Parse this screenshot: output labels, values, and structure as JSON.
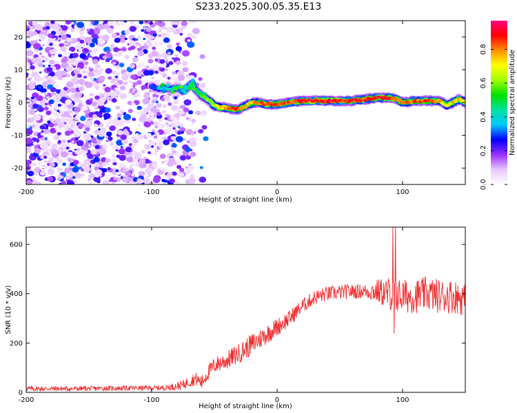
{
  "title": "S233.2025.300.05.35.E13",
  "chart_data": [
    {
      "type": "heatmap",
      "name": "spectrogram",
      "xlabel": "Height of straight line (km)",
      "ylabel": "Frequency (Hz)",
      "xlim": [
        -200,
        150
      ],
      "ylim": [
        -25,
        25
      ],
      "xticks": [
        -200,
        -100,
        0,
        100
      ],
      "xtick_labels": [
        "-200",
        "-100",
        "0",
        "100"
      ],
      "yticks": [
        -20,
        -10,
        0,
        10,
        20
      ],
      "ytick_labels": [
        "-20",
        "-10",
        "0",
        "10",
        "20"
      ],
      "colorbar": {
        "label": "Normalized spectral amplitude",
        "range": [
          0,
          0.97
        ],
        "ticks": [
          0.0,
          0.2,
          0.4,
          0.6,
          0.8
        ],
        "tick_labels": [
          "0.0",
          "0.2",
          "0.4",
          "0.6",
          "0.8"
        ],
        "colors": [
          "#ffffff",
          "#e8c8ff",
          "#9b30ff",
          "#0000ff",
          "#00c8ff",
          "#00e0a0",
          "#00e000",
          "#a0ff00",
          "#ffff00",
          "#ff9000",
          "#ff0000",
          "#ff0080"
        ]
      },
      "noise_region": {
        "x": [
          -200,
          -60
        ],
        "y": [
          -25,
          25
        ],
        "typical_amplitude": 0.15
      },
      "signal_track": {
        "x": [
          -100,
          -95,
          -90,
          -85,
          -80,
          -75,
          -70,
          -68,
          -65,
          -60,
          -55,
          -50,
          -45,
          -40,
          -35,
          -30,
          -25,
          -20,
          -15,
          -10,
          -5,
          0,
          10,
          20,
          30,
          40,
          50,
          60,
          70,
          80,
          90,
          95,
          100,
          110,
          120,
          130,
          135,
          140,
          145,
          150
        ],
        "freq": [
          5,
          4,
          4.5,
          4,
          4.5,
          3.5,
          5,
          6,
          4,
          2,
          1,
          -1,
          -1.5,
          -1.5,
          -2,
          -2,
          -1,
          0,
          0,
          -0.5,
          -0.5,
          -0.5,
          0,
          0.5,
          0.5,
          0.5,
          0.5,
          0.5,
          1,
          1.5,
          1.5,
          1,
          0,
          0.5,
          0.5,
          0.5,
          -1,
          0,
          1,
          0
        ],
        "amplitude": [
          0.3,
          0.35,
          0.4,
          0.45,
          0.5,
          0.45,
          0.5,
          0.5,
          0.5,
          0.6,
          0.65,
          0.7,
          0.8,
          0.85,
          0.9,
          0.9,
          0.85,
          0.85,
          0.85,
          0.9,
          0.9,
          0.9,
          0.9,
          0.95,
          0.95,
          0.95,
          0.95,
          0.95,
          0.9,
          0.95,
          0.95,
          0.9,
          0.85,
          0.9,
          0.9,
          0.85,
          0.75,
          0.8,
          0.8,
          0.75
        ]
      }
    },
    {
      "type": "line",
      "name": "snr",
      "xlabel": "Height of straight line (km)",
      "ylabel": "SNR (10 * v/v)",
      "xlim": [
        -200,
        150
      ],
      "ylim": [
        0,
        670
      ],
      "xticks": [
        -200,
        -100,
        0,
        100
      ],
      "xtick_labels": [
        "-200",
        "-100",
        "0",
        "100"
      ],
      "yticks": [
        0,
        200,
        400,
        600
      ],
      "ytick_labels": [
        "0",
        "200",
        "400",
        "600"
      ],
      "series": [
        {
          "name": "SNR",
          "color": "#ee3333",
          "trend_x": [
            -200,
            -160,
            -120,
            -90,
            -80,
            -75,
            -70,
            -65,
            -60,
            -55,
            -50,
            -40,
            -30,
            -20,
            -10,
            0,
            10,
            20,
            30,
            40,
            50,
            60,
            70,
            80,
            90,
            100,
            110,
            120,
            130,
            140,
            150
          ],
          "trend_y": [
            15,
            15,
            17,
            18,
            25,
            30,
            45,
            55,
            40,
            80,
            110,
            130,
            160,
            195,
            230,
            265,
            300,
            350,
            385,
            400,
            405,
            410,
            410,
            410,
            400,
            390,
            390,
            400,
            390,
            390,
            380
          ],
          "noise_x": [
            -200,
            -90,
            -60,
            -20,
            20,
            70,
            90,
            150
          ],
          "noise_amp": [
            10,
            10,
            30,
            45,
            30,
            30,
            70,
            70
          ]
        }
      ]
    }
  ]
}
